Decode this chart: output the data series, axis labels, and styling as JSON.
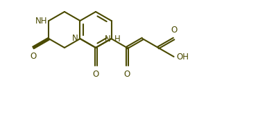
{
  "bg_color": "#ffffff",
  "line_color": "#4a4a00",
  "text_color": "#4a4a00",
  "lw": 1.5,
  "fs": 8.5
}
